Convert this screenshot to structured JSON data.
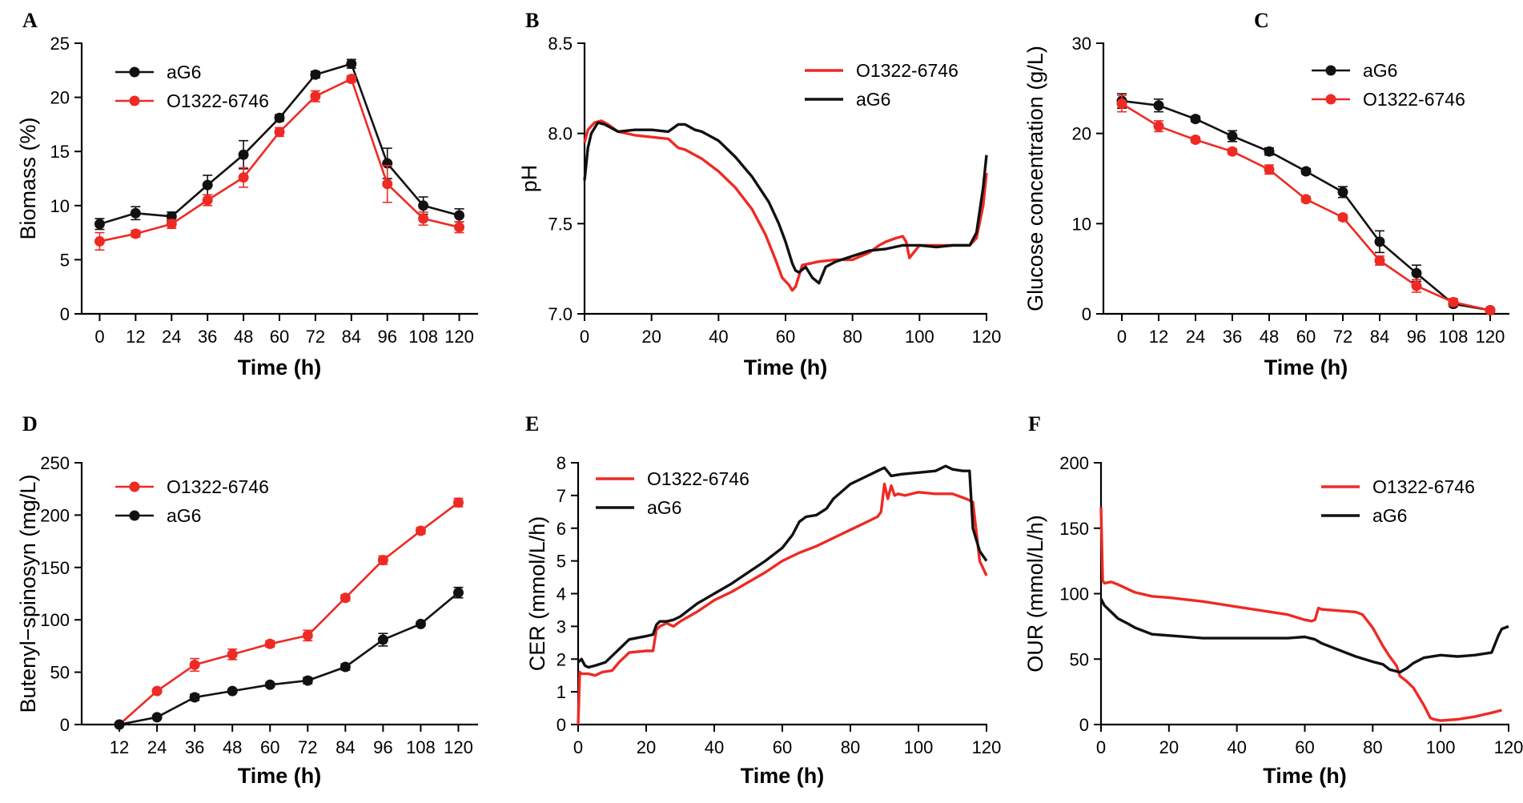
{
  "figure": {
    "panels": [
      "A",
      "B",
      "C",
      "D",
      "E",
      "F"
    ]
  },
  "colors": {
    "aG6": "#111111",
    "O1322-6746": "#ee2a24"
  },
  "chart_data": [
    {
      "label": "A",
      "type": "line",
      "xlabel": "Time (h)",
      "ylabel": "Biomass (%)",
      "xlim": [
        -6,
        126
      ],
      "ylim": [
        0,
        25
      ],
      "xticks": [
        0,
        12,
        24,
        36,
        48,
        60,
        72,
        84,
        96,
        108,
        120
      ],
      "yticks": [
        0,
        5,
        10,
        15,
        20,
        25
      ],
      "legend_position": "top-left",
      "legend": [
        "aG6",
        "O1322-6746"
      ],
      "series": [
        {
          "name": "aG6",
          "x": [
            0,
            12,
            24,
            36,
            48,
            60,
            72,
            84,
            96,
            108,
            120
          ],
          "values": [
            8.3,
            9.3,
            9.0,
            11.9,
            14.7,
            18.1,
            22.1,
            23.1,
            13.9,
            10.0,
            9.1
          ],
          "errors": [
            0.5,
            0.6,
            0.4,
            0.9,
            1.3,
            0.3,
            0.3,
            0.4,
            1.4,
            0.8,
            0.6
          ]
        },
        {
          "name": "O1322-6746",
          "x": [
            0,
            12,
            24,
            36,
            48,
            60,
            72,
            84,
            96,
            108,
            120
          ],
          "values": [
            6.7,
            7.4,
            8.3,
            10.5,
            12.6,
            16.8,
            20.1,
            21.7,
            12.0,
            8.8,
            8.0
          ],
          "errors": [
            0.8,
            0.3,
            0.4,
            0.5,
            0.9,
            0.4,
            0.5,
            0.3,
            1.7,
            0.6,
            0.5
          ]
        }
      ]
    },
    {
      "label": "B",
      "type": "line",
      "xlabel": "Time (h)",
      "ylabel": "pH",
      "xlim": [
        0,
        120
      ],
      "ylim": [
        7.0,
        8.5
      ],
      "xticks": [
        0,
        20,
        40,
        60,
        80,
        100,
        120
      ],
      "yticks": [
        7.0,
        7.5,
        8.0,
        8.5
      ],
      "legend_position": "top-right",
      "legend": [
        "O1322-6746",
        "aG6"
      ],
      "series": [
        {
          "name": "O1322-6746",
          "x": [
            0,
            1,
            3,
            5,
            7,
            10,
            15,
            20,
            25,
            28,
            30,
            35,
            40,
            45,
            50,
            54,
            57,
            59,
            61,
            62,
            63,
            65,
            70,
            75,
            80,
            85,
            88,
            90,
            93,
            95,
            96,
            97,
            100,
            110,
            115,
            117,
            119,
            120
          ],
          "values": [
            7.95,
            8.02,
            8.06,
            8.07,
            8.05,
            8.01,
            7.99,
            7.98,
            7.97,
            7.92,
            7.91,
            7.86,
            7.79,
            7.7,
            7.58,
            7.44,
            7.3,
            7.2,
            7.16,
            7.13,
            7.15,
            7.27,
            7.29,
            7.3,
            7.3,
            7.34,
            7.38,
            7.4,
            7.42,
            7.43,
            7.4,
            7.31,
            7.38,
            7.38,
            7.38,
            7.42,
            7.6,
            7.78
          ]
        },
        {
          "name": "aG6",
          "x": [
            0,
            1,
            2,
            4,
            6,
            8,
            10,
            15,
            20,
            25,
            28,
            30,
            33,
            35,
            40,
            45,
            50,
            55,
            58,
            60,
            62,
            63,
            64,
            66,
            68,
            70,
            72,
            75,
            80,
            85,
            90,
            95,
            100,
            105,
            110,
            115,
            117,
            119,
            120
          ],
          "values": [
            7.74,
            7.92,
            8.0,
            8.06,
            8.05,
            8.03,
            8.01,
            8.02,
            8.02,
            8.01,
            8.05,
            8.05,
            8.02,
            8.01,
            7.96,
            7.87,
            7.76,
            7.62,
            7.5,
            7.4,
            7.28,
            7.24,
            7.23,
            7.26,
            7.2,
            7.17,
            7.26,
            7.29,
            7.32,
            7.35,
            7.36,
            7.38,
            7.38,
            7.37,
            7.38,
            7.38,
            7.45,
            7.7,
            7.88
          ]
        }
      ]
    },
    {
      "label": "C",
      "type": "line",
      "xlabel": "Time (h)",
      "ylabel": "Glucose concentration (g/L)",
      "xlim": [
        -6,
        126
      ],
      "ylim": [
        0,
        30
      ],
      "xticks": [
        0,
        12,
        24,
        36,
        48,
        60,
        72,
        84,
        96,
        108,
        120
      ],
      "yticks": [
        0,
        10,
        20,
        30
      ],
      "legend_position": "top-right",
      "legend": [
        "aG6",
        "O1322-6746"
      ],
      "series": [
        {
          "name": "aG6",
          "x": [
            0,
            12,
            24,
            36,
            48,
            60,
            72,
            84,
            96,
            108,
            120
          ],
          "values": [
            23.6,
            23.1,
            21.6,
            19.7,
            18.0,
            15.8,
            13.5,
            8.0,
            4.5,
            1.1,
            0.4
          ],
          "errors": [
            0.8,
            0.7,
            0.3,
            0.6,
            0.4,
            0.3,
            0.6,
            1.2,
            0.9,
            0.3,
            0.2
          ]
        },
        {
          "name": "O1322-6746",
          "x": [
            0,
            12,
            24,
            36,
            48,
            60,
            72,
            84,
            96,
            108,
            120
          ],
          "values": [
            23.3,
            20.8,
            19.3,
            18.0,
            16.0,
            12.7,
            10.7,
            5.9,
            3.1,
            1.3,
            0.4
          ],
          "errors": [
            0.9,
            0.6,
            0.3,
            0.3,
            0.5,
            0.3,
            0.3,
            0.5,
            0.7,
            0.4,
            0.2
          ]
        }
      ]
    },
    {
      "label": "D",
      "type": "line",
      "xlabel": "Time (h)",
      "ylabel": "Butenyl−spinosyn (mg/L)",
      "xlim": [
        0,
        126
      ],
      "ylim": [
        0,
        250
      ],
      "xticks": [
        12,
        24,
        36,
        48,
        60,
        72,
        84,
        96,
        108,
        120
      ],
      "yticks": [
        0,
        50,
        100,
        150,
        200,
        250
      ],
      "legend_position": "top-left",
      "legend": [
        "O1322-6746",
        "aG6"
      ],
      "series": [
        {
          "name": "O1322-6746",
          "x": [
            12,
            24,
            36,
            48,
            60,
            72,
            84,
            96,
            108,
            120
          ],
          "values": [
            0,
            32,
            57,
            67,
            77,
            85,
            121,
            157,
            185,
            212
          ],
          "errors": [
            0,
            2,
            6,
            5,
            3,
            5,
            3,
            4,
            3,
            4
          ]
        },
        {
          "name": "aG6",
          "x": [
            12,
            24,
            36,
            48,
            60,
            72,
            84,
            96,
            108,
            120
          ],
          "values": [
            0,
            7,
            26,
            32,
            38,
            42,
            55,
            81,
            96,
            126
          ],
          "errors": [
            0,
            1,
            3,
            2,
            2,
            3,
            3,
            6,
            2,
            5
          ]
        }
      ]
    },
    {
      "label": "E",
      "type": "line",
      "xlabel": "Time (h)",
      "ylabel": "CER (mmol/L/h)",
      "xlim": [
        0,
        120
      ],
      "ylim": [
        0,
        8
      ],
      "xticks": [
        0,
        20,
        40,
        60,
        80,
        100,
        120
      ],
      "yticks": [
        0,
        1,
        2,
        3,
        4,
        5,
        6,
        7,
        8
      ],
      "legend_position": "top-left",
      "legend": [
        "O1322-6746",
        "aG6"
      ],
      "series": [
        {
          "name": "O1322-6746",
          "x": [
            0,
            0.5,
            1,
            3,
            5,
            7,
            10,
            12,
            15,
            20,
            22,
            23,
            24,
            26,
            28,
            30,
            35,
            40,
            45,
            50,
            55,
            60,
            65,
            70,
            75,
            80,
            85,
            88,
            89,
            90,
            91,
            92,
            93,
            94,
            96,
            100,
            105,
            110,
            114,
            116,
            118,
            120
          ],
          "values": [
            0,
            1.6,
            1.55,
            1.55,
            1.5,
            1.6,
            1.65,
            1.9,
            2.2,
            2.25,
            2.25,
            2.9,
            3.0,
            3.1,
            3.0,
            3.15,
            3.45,
            3.8,
            4.05,
            4.35,
            4.65,
            5.0,
            5.25,
            5.45,
            5.7,
            5.95,
            6.2,
            6.35,
            6.5,
            7.35,
            6.9,
            7.3,
            7.0,
            7.05,
            7.0,
            7.1,
            7.05,
            7.05,
            6.9,
            6.8,
            5.0,
            4.55
          ]
        },
        {
          "name": "aG6",
          "x": [
            0,
            1,
            2,
            3,
            5,
            8,
            10,
            12,
            15,
            20,
            22,
            23,
            24,
            26,
            28,
            30,
            35,
            40,
            45,
            50,
            55,
            60,
            63,
            65,
            67,
            70,
            73,
            75,
            80,
            85,
            88,
            90,
            92,
            95,
            100,
            105,
            108,
            110,
            113,
            115,
            116,
            118,
            120
          ],
          "values": [
            1.9,
            2.0,
            1.8,
            1.75,
            1.8,
            1.9,
            2.1,
            2.3,
            2.6,
            2.7,
            2.75,
            3.05,
            3.15,
            3.15,
            3.2,
            3.3,
            3.7,
            4.0,
            4.3,
            4.65,
            5.0,
            5.4,
            5.8,
            6.2,
            6.35,
            6.4,
            6.6,
            6.9,
            7.35,
            7.6,
            7.75,
            7.85,
            7.6,
            7.65,
            7.7,
            7.75,
            7.9,
            7.8,
            7.75,
            7.75,
            6.0,
            5.3,
            5.0
          ]
        }
      ]
    },
    {
      "label": "F",
      "type": "line",
      "xlabel": "Time (h)",
      "ylabel": "OUR (mmol/L/h)",
      "xlim": [
        0,
        120
      ],
      "ylim": [
        0,
        200
      ],
      "xticks": [
        0,
        20,
        40,
        60,
        80,
        100,
        120
      ],
      "yticks": [
        0,
        50,
        100,
        150,
        200
      ],
      "legend_position": "top-right",
      "legend": [
        "O1322-6746",
        "aG6"
      ],
      "series": [
        {
          "name": "O1322-6746",
          "x": [
            0,
            0.5,
            1,
            3,
            5,
            10,
            15,
            20,
            30,
            40,
            50,
            55,
            60,
            62,
            63,
            64,
            65,
            70,
            75,
            77,
            80,
            83,
            85,
            87,
            88,
            90,
            92,
            95,
            97,
            98,
            100,
            105,
            110,
            115,
            118
          ],
          "values": [
            166,
            110,
            108,
            109,
            107,
            101,
            98,
            97,
            94,
            90,
            86,
            84,
            80,
            79,
            80,
            89,
            88,
            87,
            86,
            84,
            74,
            60,
            52,
            45,
            37,
            33,
            28,
            15,
            5,
            4,
            3,
            4,
            6,
            9,
            11
          ]
        },
        {
          "name": "aG6",
          "x": [
            0,
            1,
            3,
            5,
            8,
            10,
            15,
            20,
            30,
            40,
            50,
            55,
            60,
            63,
            65,
            70,
            75,
            80,
            83,
            85,
            88,
            90,
            92,
            95,
            100,
            105,
            110,
            115,
            117,
            118,
            120
          ],
          "values": [
            96,
            91,
            86,
            81,
            77,
            74,
            69,
            68,
            66,
            66,
            66,
            66,
            67,
            65,
            62,
            57,
            52,
            48,
            46,
            42,
            40,
            43,
            47,
            51,
            53,
            52,
            53,
            55,
            68,
            73,
            75
          ]
        }
      ]
    }
  ]
}
